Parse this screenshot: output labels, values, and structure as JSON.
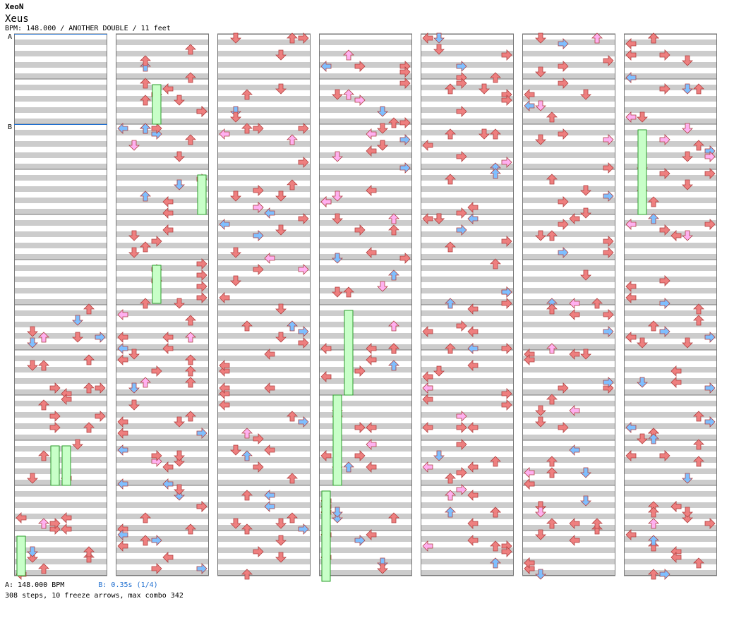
{
  "header": {
    "artist": "XeoN",
    "song": "Xeus",
    "meta": "BPM: 148.000 / ANOTHER DOUBLE / 11 feet"
  },
  "markers": {
    "a": "A",
    "b": "B"
  },
  "footer": {
    "bpm": "A: 148.000 BPM",
    "stop": "B: 0.35s (1/4)",
    "stats": "308 steps, 10 freeze arrows, max combo 342"
  },
  "colors": {
    "arrow_red": "#ee7f7f",
    "arrow_blue": "#7fbfff",
    "arrow_pink": "#ffb0f0",
    "freeze": "#c8ffc8",
    "freeze_border": "#2b9e2b",
    "stripe": "#cccccc",
    "marker_line": "#1f6fd0"
  }
}
